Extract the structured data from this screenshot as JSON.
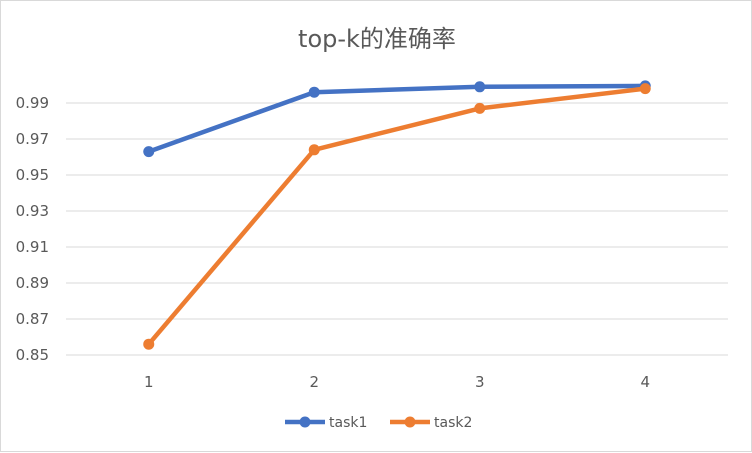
{
  "chart_data": {
    "type": "line",
    "title": "top-k的准确率",
    "xlabel": "",
    "ylabel": "",
    "categories": [
      "1",
      "2",
      "3",
      "4"
    ],
    "ylim": [
      0.85,
      1.01
    ],
    "yticks": [
      0.85,
      0.87,
      0.89,
      0.91,
      0.93,
      0.95,
      0.97,
      0.99
    ],
    "ytick_labels": [
      "0.85",
      "0.87",
      "0.89",
      "0.91",
      "0.93",
      "0.95",
      "0.97",
      "0.99"
    ],
    "grid": true,
    "legend_position": "bottom",
    "series": [
      {
        "name": "task1",
        "color": "#4472C4",
        "values": [
          0.963,
          0.996,
          0.999,
          0.9995
        ]
      },
      {
        "name": "task2",
        "color": "#ED7D31",
        "values": [
          0.856,
          0.964,
          0.987,
          0.998
        ]
      }
    ]
  }
}
